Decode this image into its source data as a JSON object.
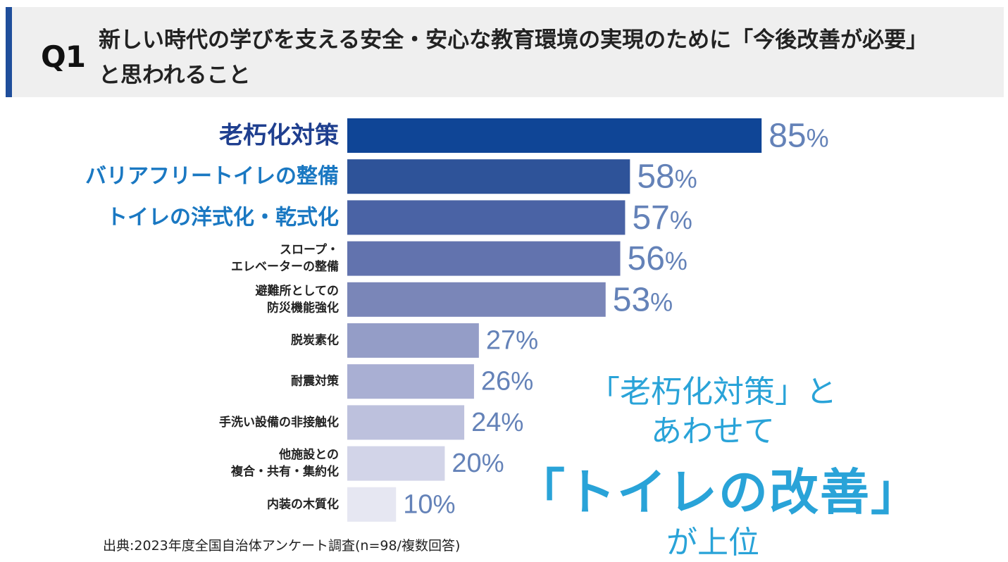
{
  "header": {
    "q_label": "Q1",
    "question": "新しい時代の学びを支える安全・安心な教育環境の実現のために「今後改善が必要」と思われること"
  },
  "colors": {
    "accent": "#1f4e9b",
    "highlight_text": "#1a78c2",
    "top_text": "#1f3f8f",
    "body_text": "#222222",
    "value_text": "#6482b8",
    "callout": "#29a3d8"
  },
  "chart_data": {
    "type": "bar",
    "orientation": "horizontal",
    "categories": [
      {
        "lines": [
          "老朽化対策"
        ],
        "emphasis": "top"
      },
      {
        "lines": [
          "バリアフリートイレの整備"
        ],
        "emphasis": "highlight"
      },
      {
        "lines": [
          "トイレの洋式化・乾式化"
        ],
        "emphasis": "highlight"
      },
      {
        "lines": [
          "スロープ・",
          "エレベーターの整備"
        ],
        "emphasis": "normal"
      },
      {
        "lines": [
          "避難所としての",
          "防災機能強化"
        ],
        "emphasis": "normal"
      },
      {
        "lines": [
          "脱炭素化"
        ],
        "emphasis": "normal"
      },
      {
        "lines": [
          "耐震対策"
        ],
        "emphasis": "normal"
      },
      {
        "lines": [
          "手洗い設備の非接触化"
        ],
        "emphasis": "normal"
      },
      {
        "lines": [
          "他施設との",
          "複合・共有・集約化"
        ],
        "emphasis": "normal"
      },
      {
        "lines": [
          "内装の木質化"
        ],
        "emphasis": "normal"
      }
    ],
    "values": [
      85,
      58,
      57,
      56,
      53,
      27,
      26,
      24,
      20,
      10
    ],
    "value_suffix": "%",
    "bar_colors": [
      "#0f4596",
      "#2e5399",
      "#4a63a5",
      "#6273ae",
      "#7a86b8",
      "#949dc7",
      "#a9afd3",
      "#bdc1dd",
      "#d2d4e8",
      "#e6e7f2"
    ],
    "xlim": [
      0,
      100
    ],
    "title": "",
    "xlabel": "",
    "ylabel": ""
  },
  "callout": {
    "line1": "「老朽化対策」と",
    "line2": "あわせて",
    "line3": "「トイレの改善」",
    "line4": "が上位"
  },
  "source": "出典:2023年度全国自治体アンケート調査(n=98/複数回答)"
}
